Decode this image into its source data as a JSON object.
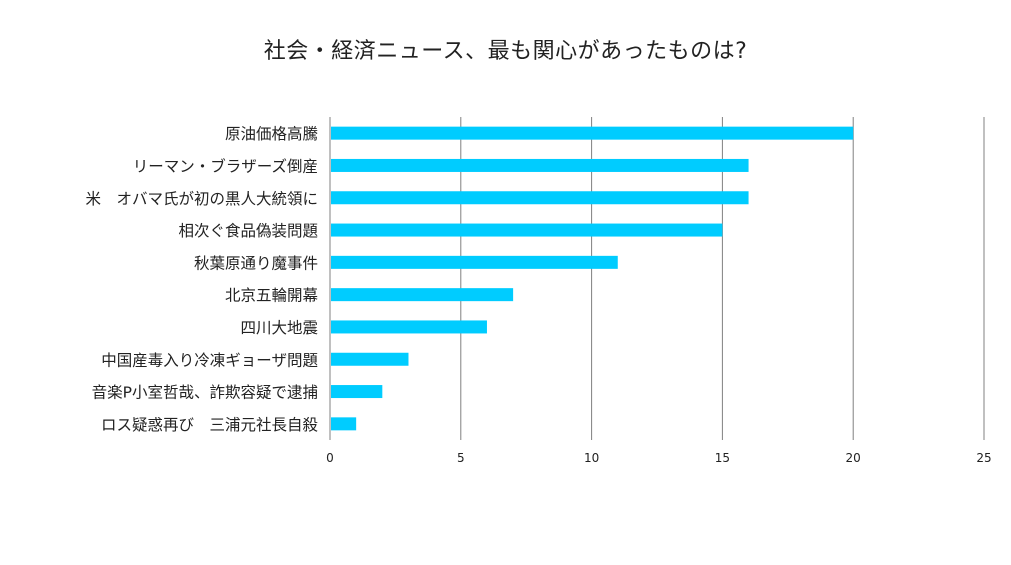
{
  "chart_data": {
    "type": "bar",
    "orientation": "horizontal",
    "title": "社会・経済ニュース、最も関心があったものは?",
    "xlabel": "",
    "ylabel": "",
    "categories": [
      "原油価格高騰",
      "リーマン・ブラザーズ倒産",
      "米　オバマ氏が初の黒人大統領に",
      "相次ぐ食品偽装問題",
      "秋葉原通り魔事件",
      "北京五輪開幕",
      "四川大地震",
      "中国産毒入り冷凍ギョーザ問題",
      "音楽P小室哲哉、詐欺容疑で逮捕",
      "ロス疑惑再び　三浦元社長自殺"
    ],
    "values": [
      20,
      16,
      16,
      15,
      11,
      7,
      6,
      3,
      2,
      1
    ],
    "xlim": [
      0,
      25
    ],
    "xticks": [
      "0",
      "5",
      "10",
      "15",
      "20",
      "25"
    ],
    "xtick_values": [
      0,
      5,
      10,
      15,
      20,
      25
    ],
    "grid": "vertical",
    "legend": "none",
    "bar_color": "#00ccff",
    "grid_color": "#808080"
  }
}
